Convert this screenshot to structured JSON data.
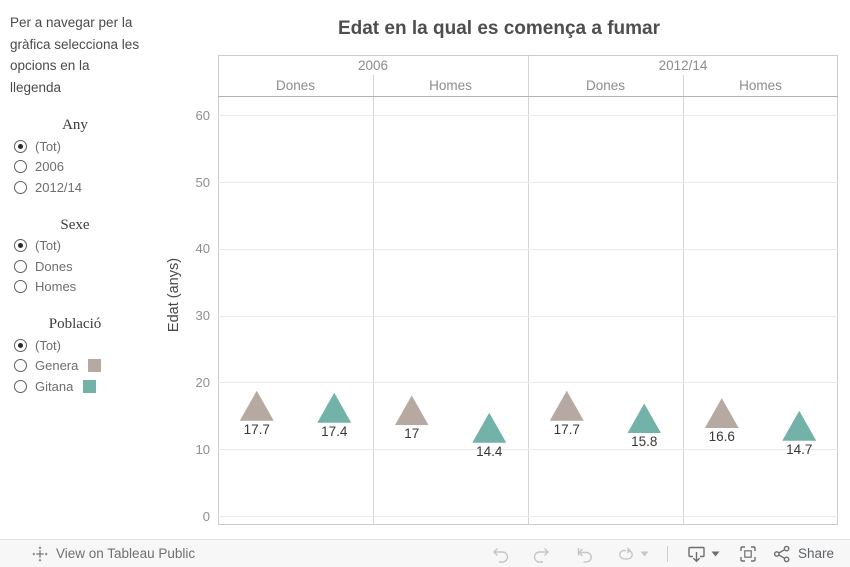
{
  "sidebar": {
    "instructions": "Per a navegar per la gràfica selecciona les opcions en la llegenda",
    "legends": [
      {
        "title": "Any",
        "options": [
          {
            "label": "(Tot)",
            "selected": true
          },
          {
            "label": "2006",
            "selected": false
          },
          {
            "label": "2012/14",
            "selected": false
          }
        ]
      },
      {
        "title": "Sexe",
        "options": [
          {
            "label": "(Tot)",
            "selected": true
          },
          {
            "label": "Dones",
            "selected": false
          },
          {
            "label": "Homes",
            "selected": false
          }
        ]
      },
      {
        "title": "Població",
        "options": [
          {
            "label": "(Tot)",
            "selected": true
          },
          {
            "label": "Genera",
            "selected": false,
            "swatch": "#b6a9a1"
          },
          {
            "label": "Gitana",
            "selected": false,
            "swatch": "#72b2a8"
          }
        ]
      }
    ]
  },
  "chart_data": {
    "type": "scatter",
    "marker": "triangle-up",
    "title": "Edat en la qual es comença a fumar",
    "ylabel": "Edat (anys)",
    "ylim": [
      0,
      62
    ],
    "yticks": [
      0,
      10,
      20,
      30,
      40,
      50,
      60
    ],
    "grid": true,
    "column_groups": [
      "2006",
      "2012/14"
    ],
    "sub_columns": [
      "Dones",
      "Homes"
    ],
    "series": [
      {
        "name": "Genera",
        "color": "#b6a9a1"
      },
      {
        "name": "Gitana",
        "color": "#72b2a8"
      }
    ],
    "points": [
      {
        "year": "2006",
        "sex": "Dones",
        "series": "Genera",
        "value": 17.7,
        "label": "17.7"
      },
      {
        "year": "2006",
        "sex": "Dones",
        "series": "Gitana",
        "value": 17.4,
        "label": "17.4"
      },
      {
        "year": "2006",
        "sex": "Homes",
        "series": "Genera",
        "value": 17,
        "label": "17"
      },
      {
        "year": "2006",
        "sex": "Homes",
        "series": "Gitana",
        "value": 14.4,
        "label": "14.4"
      },
      {
        "year": "2012/14",
        "sex": "Dones",
        "series": "Genera",
        "value": 17.7,
        "label": "17.7"
      },
      {
        "year": "2012/14",
        "sex": "Dones",
        "series": "Gitana",
        "value": 15.8,
        "label": "15.8"
      },
      {
        "year": "2012/14",
        "sex": "Homes",
        "series": "Genera",
        "value": 16.6,
        "label": "16.6"
      },
      {
        "year": "2012/14",
        "sex": "Homes",
        "series": "Gitana",
        "value": 14.7,
        "label": "14.7"
      }
    ]
  },
  "toolbar": {
    "view_label": "View on Tableau Public",
    "share_label": "Share",
    "icons": [
      "tableau-logo",
      "undo",
      "redo",
      "revert",
      "refresh",
      "download",
      "fullscreen",
      "share"
    ]
  }
}
